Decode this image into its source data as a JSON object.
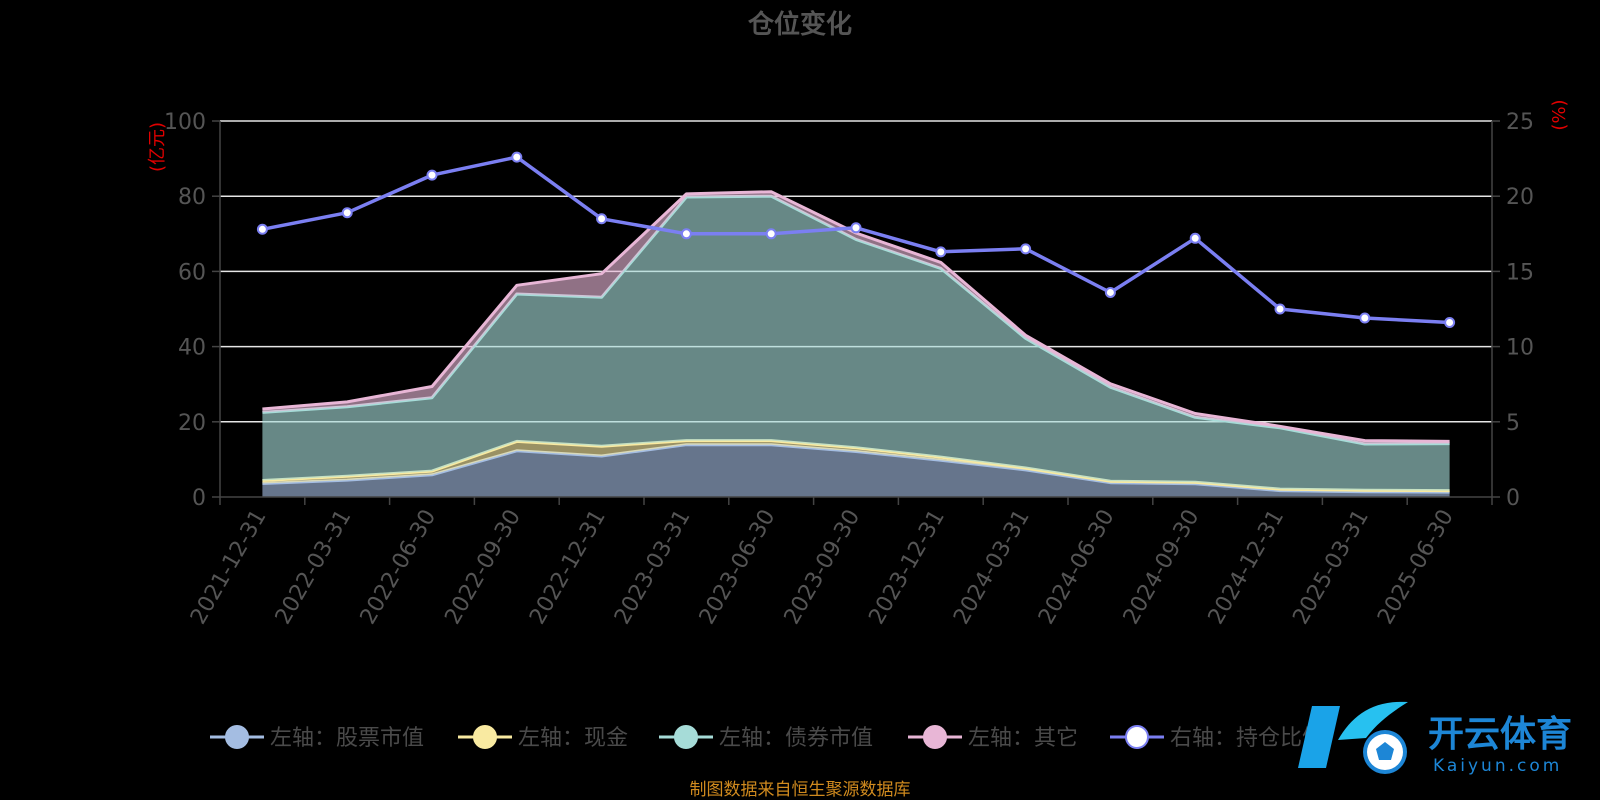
{
  "chart_data": {
    "type": "area",
    "title": "仓位变化",
    "left_unit": "(亿元)",
    "right_unit": "(%)",
    "x": [
      "2021-12-31",
      "2022-03-31",
      "2022-06-30",
      "2022-09-30",
      "2022-12-31",
      "2023-03-31",
      "2023-06-30",
      "2023-09-30",
      "2023-12-31",
      "2024-03-31",
      "2024-06-30",
      "2024-09-30",
      "2024-12-31",
      "2025-03-31",
      "2025-06-30"
    ],
    "left_ylim": [
      0,
      100
    ],
    "left_ticks": [
      0,
      20,
      40,
      60,
      80,
      100
    ],
    "right_ylim": [
      0,
      25
    ],
    "right_ticks": [
      0,
      5,
      10,
      15,
      20,
      25
    ],
    "grid": true,
    "legend_position": "bottom",
    "stacked_series": [
      {
        "name": "左轴：股票市值",
        "color": "#a4bde2",
        "axis": "left",
        "values": [
          3.6,
          4.5,
          5.9,
          12.3,
          10.9,
          13.9,
          13.9,
          12.1,
          9.8,
          7.2,
          3.8,
          3.5,
          1.7,
          1.4,
          1.3
        ]
      },
      {
        "name": "左轴：现金",
        "color": "#f9eaa1",
        "axis": "left",
        "values": [
          0.8,
          1.0,
          1.0,
          2.5,
          2.6,
          1.1,
          1.1,
          1.0,
          0.8,
          0.5,
          0.4,
          0.4,
          0.4,
          0.4,
          0.4
        ]
      },
      {
        "name": "左轴：债券市值",
        "color": "#a6dcd8",
        "axis": "left",
        "values": [
          18.1,
          18.5,
          19.5,
          39.2,
          39.6,
          64.8,
          65.0,
          55.4,
          50.2,
          34.5,
          25.0,
          17.3,
          16.3,
          12.3,
          12.5
        ]
      },
      {
        "name": "左轴：其它",
        "color": "#e8b6d6",
        "axis": "left",
        "values": [
          0.9,
          1.3,
          3.0,
          2.3,
          6.3,
          0.8,
          1.2,
          1.7,
          1.6,
          0.8,
          0.9,
          1.0,
          0.4,
          0.9,
          0.6
        ]
      }
    ],
    "line_series": {
      "name": "右轴：持仓比例",
      "color": "#7b7ff2",
      "axis": "right",
      "values": [
        17.8,
        18.9,
        21.4,
        22.6,
        18.5,
        17.5,
        17.5,
        17.9,
        16.3,
        16.5,
        13.6,
        17.2,
        12.5,
        11.9,
        11.6
      ]
    },
    "source": "制图数据来自恒生聚源数据库",
    "watermark": {
      "cn": "开云体育",
      "en": "Kaiyun.com"
    }
  }
}
